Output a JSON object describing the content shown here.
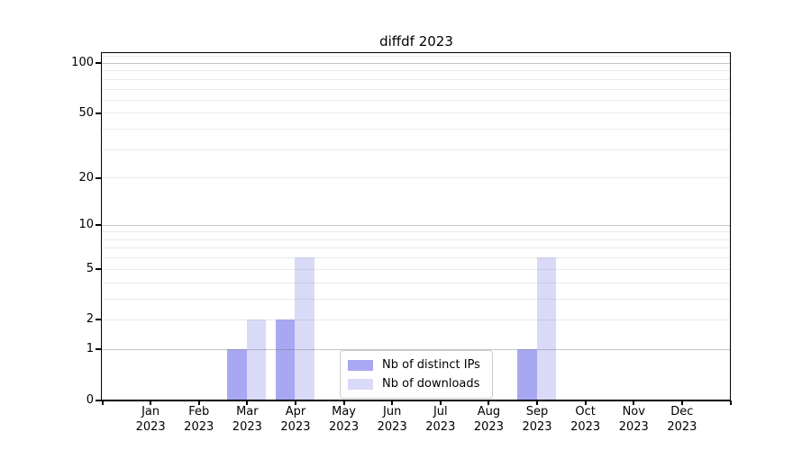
{
  "title": "diffdf 2023",
  "chart_data": {
    "type": "bar",
    "title": "diffdf 2023",
    "categories": [
      "Jan",
      "Feb",
      "Mar",
      "Apr",
      "May",
      "Jun",
      "Jul",
      "Aug",
      "Sep",
      "Oct",
      "Nov",
      "Dec"
    ],
    "category_year": "2023",
    "series": [
      {
        "name": "Nb of distinct IPs",
        "color": "#a8a8f2",
        "values": [
          0,
          0,
          1,
          2,
          0,
          0,
          0,
          0,
          1,
          0,
          0,
          0
        ]
      },
      {
        "name": "Nb of downloads",
        "color": "#d9d9f8",
        "values": [
          0,
          0,
          2,
          6,
          0,
          0,
          0,
          0,
          6,
          0,
          0,
          0
        ]
      }
    ],
    "xlabel": "",
    "ylabel": "",
    "y_scale": "log1p",
    "ylim": [
      0,
      114.6
    ],
    "y_ticks": [
      0,
      1,
      2,
      5,
      10,
      20,
      50,
      100
    ],
    "grid": {
      "on": true,
      "major_values": [
        1,
        10,
        100
      ],
      "minor_values": [
        2,
        3,
        4,
        5,
        6,
        7,
        8,
        9,
        20,
        30,
        40,
        50,
        60,
        70,
        80,
        90,
        110
      ]
    },
    "legend": {
      "position": "lower center-right",
      "entries": [
        "Nb of distinct IPs",
        "Nb of downloads"
      ]
    }
  }
}
